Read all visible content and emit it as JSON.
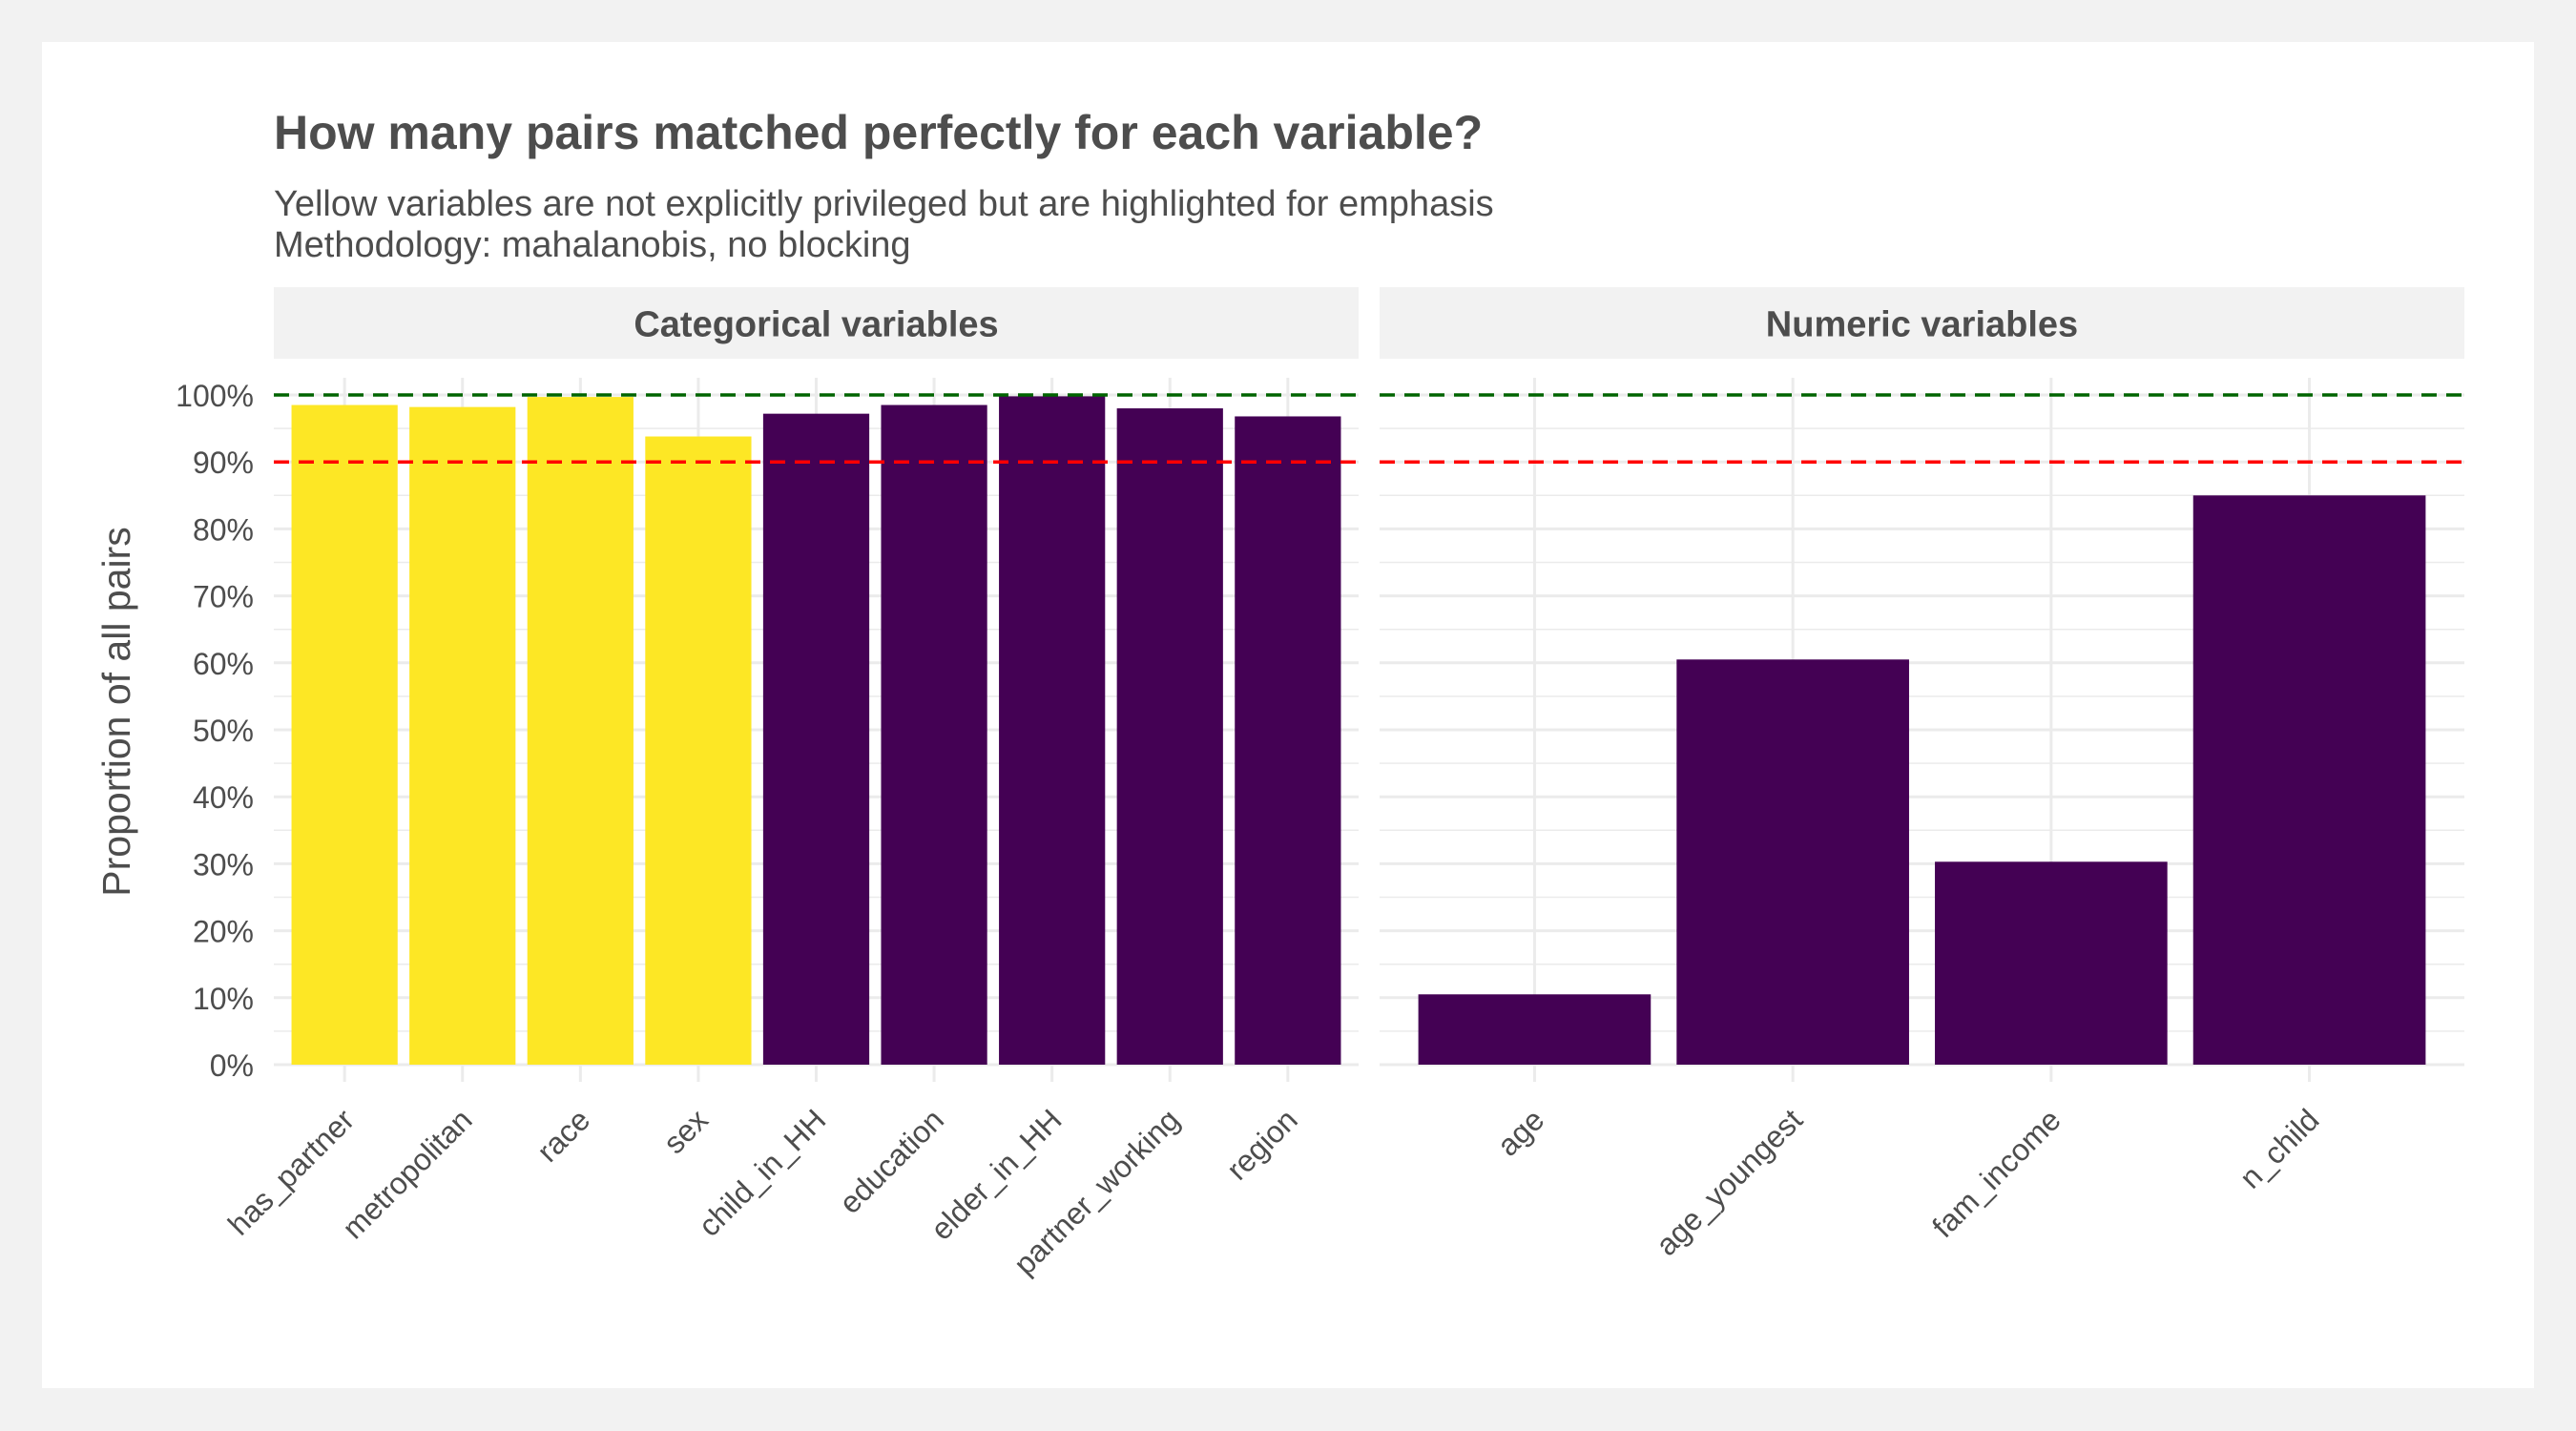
{
  "chart_data": {
    "type": "bar",
    "title": "How many pairs matched perfectly for each variable?",
    "subtitle_lines": [
      "Yellow variables are not explicitly privileged but are highlighted for emphasis",
      "Methodology: mahalanobis, no blocking"
    ],
    "ylabel": "Proportion of all pairs",
    "xlabel": "",
    "ylim": [
      0,
      1
    ],
    "y_ticks": [
      "0%",
      "10%",
      "20%",
      "30%",
      "40%",
      "50%",
      "60%",
      "70%",
      "80%",
      "90%",
      "100%"
    ],
    "grid": true,
    "reference_lines": [
      {
        "value": 1.0,
        "color": "#006400",
        "style": "dashed"
      },
      {
        "value": 0.9,
        "color": "#ff0000",
        "style": "dashed"
      }
    ],
    "colors": {
      "highlighted": "#fde725",
      "default": "#440154"
    },
    "facets": [
      {
        "label": "Categorical variables",
        "categories": [
          "has_partner",
          "metropolitan",
          "race",
          "sex",
          "child_in_HH",
          "education",
          "elder_in_HH",
          "partner_working",
          "region"
        ],
        "values": [
          0.985,
          0.982,
          0.997,
          0.938,
          0.972,
          0.985,
          0.998,
          0.98,
          0.968
        ],
        "highlighted": [
          true,
          true,
          true,
          true,
          false,
          false,
          false,
          false,
          false
        ]
      },
      {
        "label": "Numeric variables",
        "categories": [
          "age",
          "age_youngest",
          "fam_income",
          "n_child"
        ],
        "values": [
          0.105,
          0.605,
          0.303,
          0.85
        ],
        "highlighted": [
          false,
          false,
          false,
          false
        ]
      }
    ]
  }
}
